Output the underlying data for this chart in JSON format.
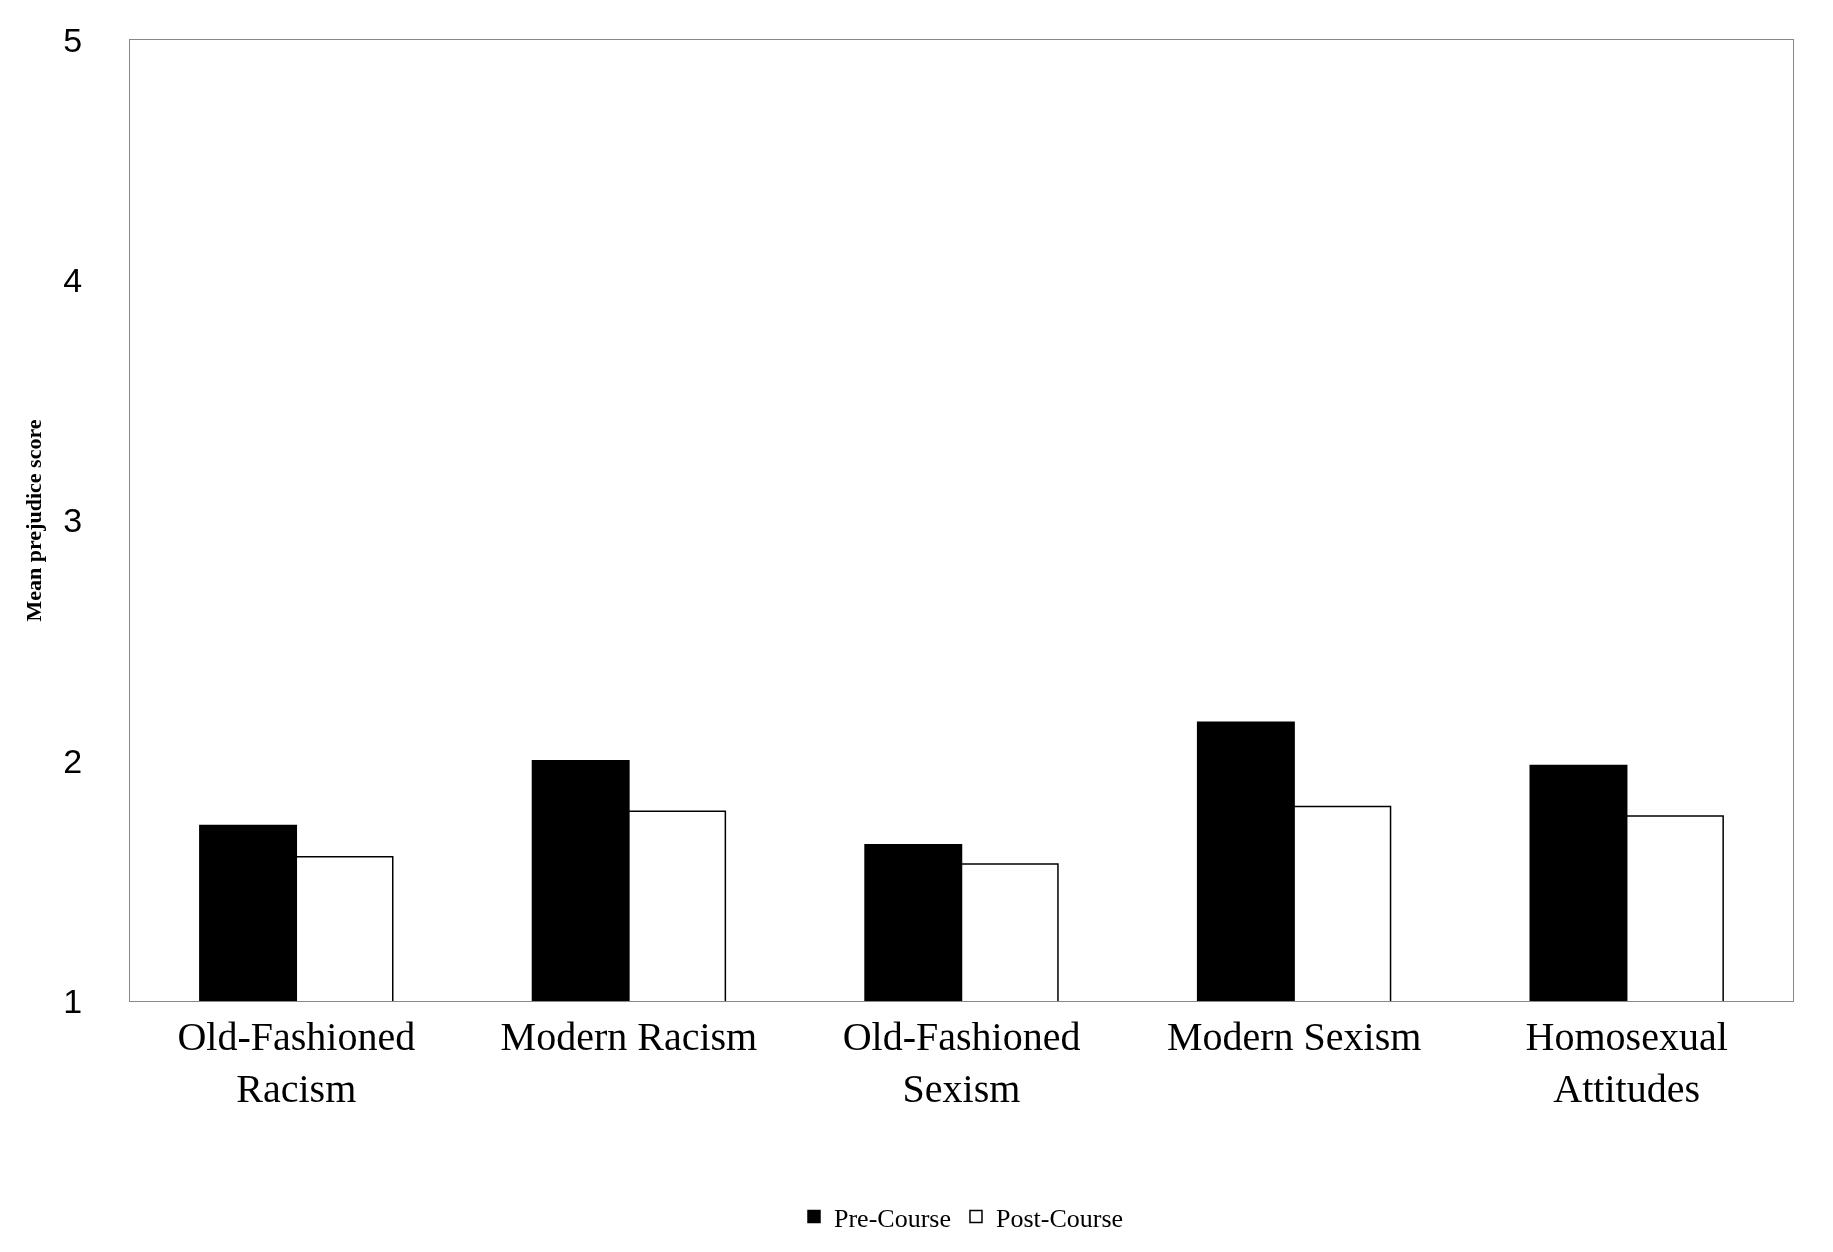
{
  "chart_data": {
    "type": "bar",
    "ylabel": "Mean prejudice score",
    "categories": [
      "Old-Fashioned Racism",
      "Modern Racism",
      "Old-Fashioned Sexism",
      "Modern Sexism",
      "Homosexual Attitudes"
    ],
    "series": [
      {
        "name": "Pre-Course",
        "color": "#000000",
        "values": [
          1.73,
          2.0,
          1.65,
          2.16,
          1.98
        ]
      },
      {
        "name": "Post-Course",
        "color": "#ffffff",
        "values": [
          1.6,
          1.79,
          1.57,
          1.81,
          1.77
        ]
      }
    ],
    "ylim": [
      1,
      5
    ],
    "yticks": [
      1,
      2,
      3,
      4,
      5
    ],
    "legend": "bottom"
  }
}
